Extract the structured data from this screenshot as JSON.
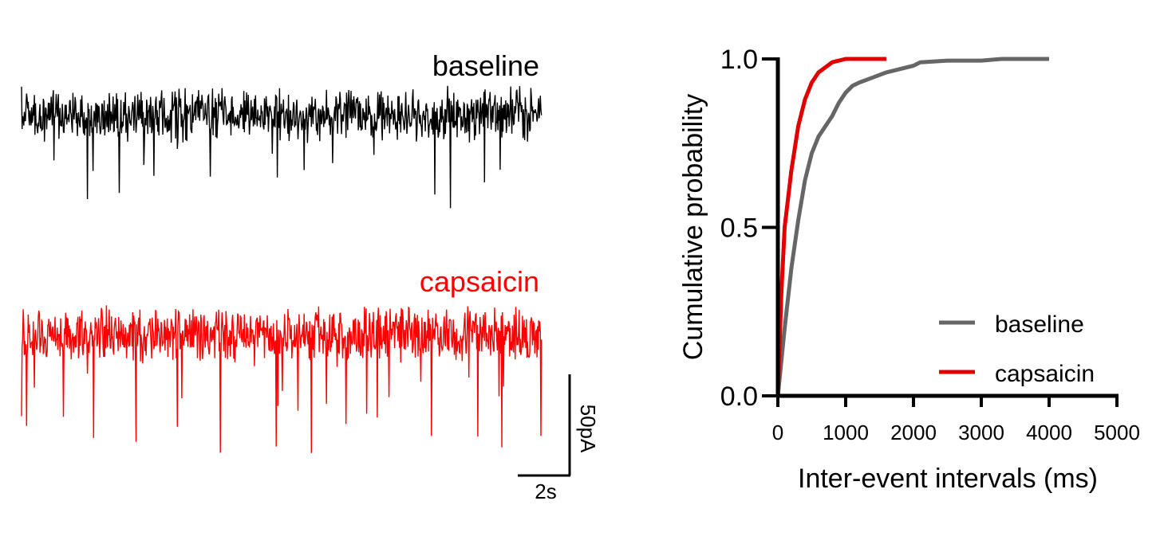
{
  "traces": {
    "baseline_label": "baseline",
    "capsaicin_label": "capsaicin",
    "baseline_color": "#000000",
    "capsaicin_color": "#ff0000",
    "scalebar": {
      "current_label": "50pA",
      "time_label": "2s"
    }
  },
  "chart_data": {
    "type": "line",
    "title": "",
    "xlabel": "Inter-event intervals (ms)",
    "ylabel": "Cumulative probability",
    "xlim": [
      0,
      5000
    ],
    "ylim": [
      0,
      1
    ],
    "xticks": [
      0,
      1000,
      2000,
      3000,
      4000,
      5000
    ],
    "yticks": [
      "0.0",
      "0.5",
      "1.0"
    ],
    "grid": false,
    "legend_position": "bottom-right",
    "series": [
      {
        "name": "baseline",
        "color": "#666666",
        "x": [
          0,
          100,
          200,
          300,
          400,
          500,
          600,
          700,
          800,
          900,
          1000,
          1100,
          1200,
          1400,
          1600,
          1800,
          2000,
          2100,
          2500,
          3000,
          3300,
          3500,
          4000
        ],
        "y": [
          0,
          0.2,
          0.38,
          0.52,
          0.64,
          0.72,
          0.77,
          0.8,
          0.83,
          0.87,
          0.9,
          0.92,
          0.93,
          0.945,
          0.96,
          0.97,
          0.98,
          0.99,
          0.995,
          0.995,
          1.0,
          1.0,
          1.0
        ]
      },
      {
        "name": "capsaicin",
        "color": "#e00000",
        "x": [
          0,
          50,
          100,
          200,
          300,
          400,
          500,
          600,
          700,
          800,
          900,
          1000,
          1100,
          1200,
          1600
        ],
        "y": [
          0,
          0.3,
          0.5,
          0.67,
          0.8,
          0.88,
          0.93,
          0.96,
          0.975,
          0.99,
          0.995,
          1.0,
          1.0,
          1.0,
          1.0
        ]
      }
    ]
  }
}
